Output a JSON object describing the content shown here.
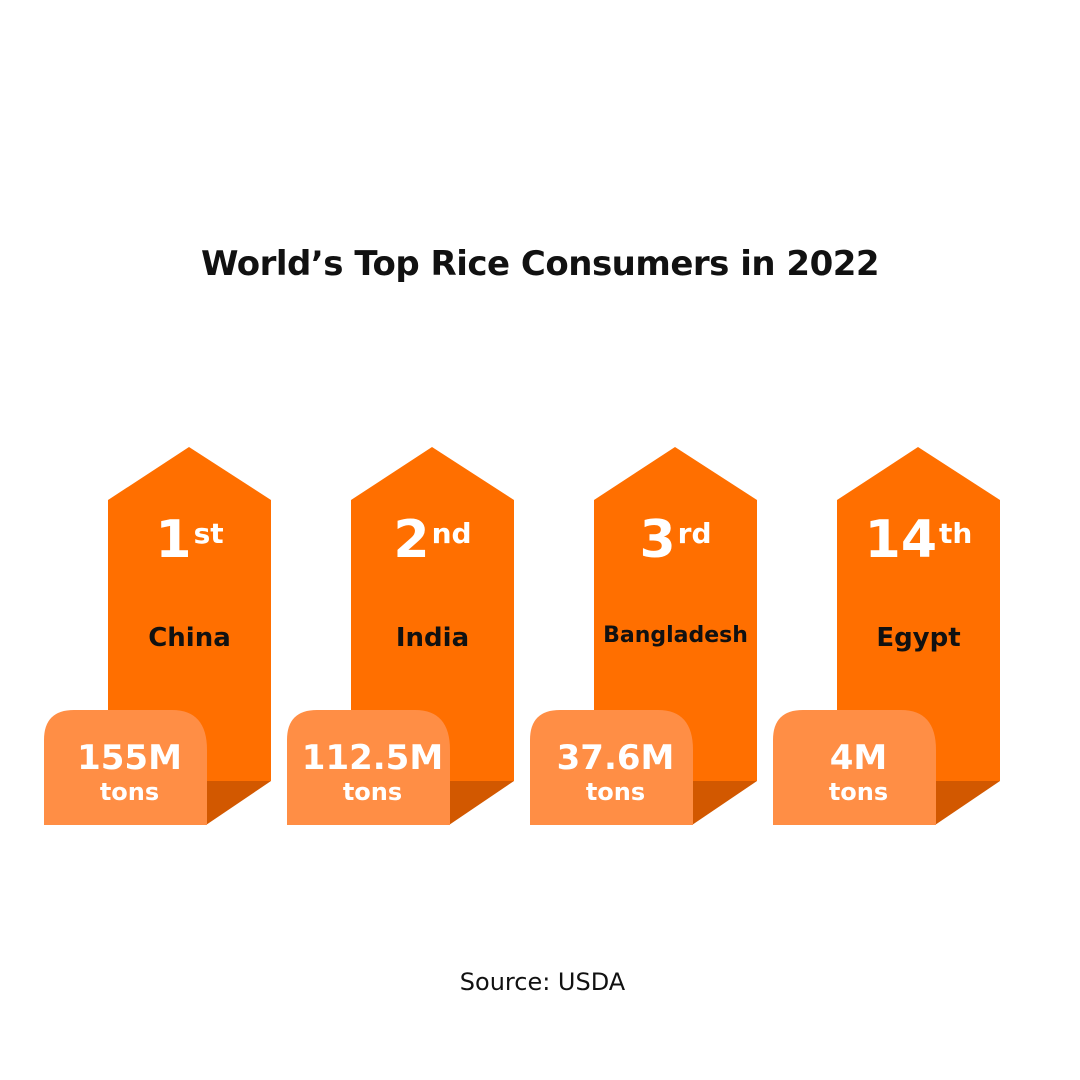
{
  "title": "World’s Top Rice Consumers in 2022",
  "source": "Source: USDA",
  "colors": {
    "main": "#FF6F00",
    "tab": "#FF8E45",
    "shadow": "#D25800",
    "text_dark": "#111111",
    "text_light": "#FFFFFF"
  },
  "items": [
    {
      "rank": "1",
      "suffix": "st",
      "country": "China",
      "value": "155M",
      "unit": "tons"
    },
    {
      "rank": "2",
      "suffix": "nd",
      "country": "India",
      "value": "112.5M",
      "unit": "tons"
    },
    {
      "rank": "3",
      "suffix": "rd",
      "country": "Bangladesh",
      "value": "37.6M",
      "unit": "tons"
    },
    {
      "rank": "14",
      "suffix": "th",
      "country": "Egypt",
      "value": "4M",
      "unit": "tons"
    }
  ]
}
